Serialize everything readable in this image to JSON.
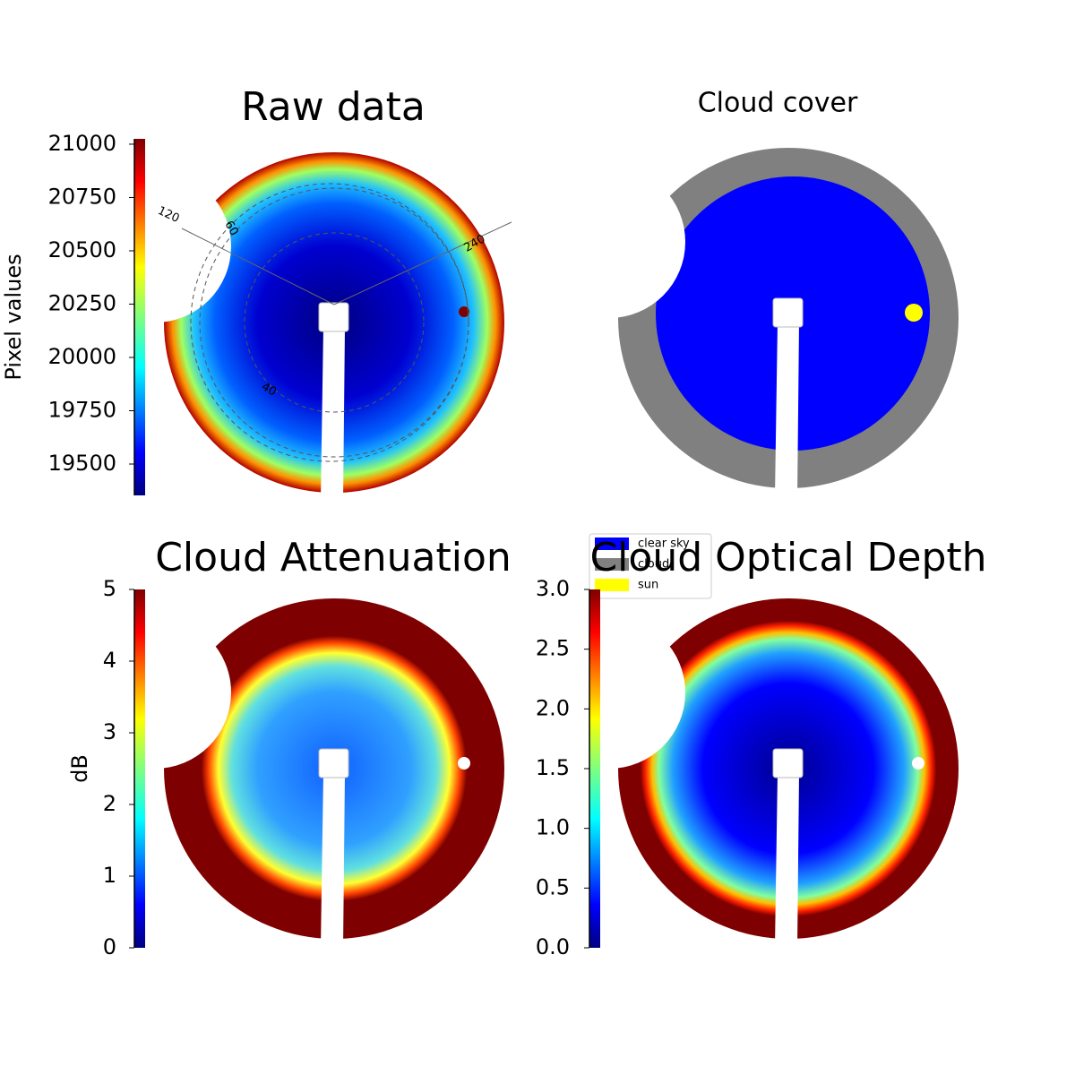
{
  "chart_data": [
    {
      "type": "image",
      "title": "Raw data",
      "colorbar_label": "Pixel values",
      "ylim": [
        19353,
        21025
      ],
      "yticks": [
        19500,
        19750,
        20000,
        20250,
        20500,
        20750,
        21000
      ],
      "annotations": [
        "120",
        "60",
        "240",
        "40"
      ]
    },
    {
      "type": "image",
      "title": "Cloud cover",
      "series": [
        {
          "name": "clear sky",
          "color": "#0000ff"
        },
        {
          "name": "cloud",
          "color": "#808080"
        },
        {
          "name": "sun",
          "color": "#ffff00"
        }
      ]
    },
    {
      "type": "image",
      "title": "Cloud Attenuation",
      "colorbar_label": "dB",
      "ylim": [
        0,
        5
      ],
      "yticks": [
        0,
        1,
        2,
        3,
        4,
        5
      ]
    },
    {
      "type": "image",
      "title": "Cloud Optical Depth",
      "ylim": [
        0,
        3
      ],
      "yticks": [
        {
          "value": 0,
          "label": "0.0"
        },
        0.5,
        {
          "value": 1,
          "label": "1.0"
        },
        1.5,
        {
          "value": 2,
          "label": "2.0"
        },
        2.5,
        {
          "value": 3,
          "label": "3.0"
        }
      ]
    }
  ]
}
